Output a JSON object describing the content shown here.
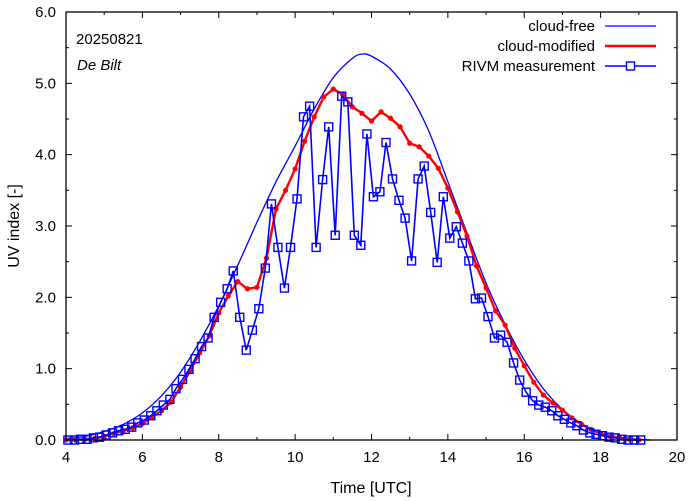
{
  "chart_data": {
    "type": "line",
    "annotation": {
      "date": "20250821",
      "location": "De Bilt"
    },
    "xlabel": "Time  [UTC]",
    "ylabel": "UV index  [-]",
    "xlim": [
      4,
      20
    ],
    "ylim": [
      0,
      6
    ],
    "x_ticks": [
      4,
      6,
      8,
      10,
      12,
      14,
      16,
      18,
      20
    ],
    "x_tick_labels": [
      "4",
      "6",
      "8",
      "10",
      "12",
      "14",
      "16",
      "18",
      "20"
    ],
    "x_minor_step": 1,
    "y_ticks": [
      0,
      1,
      2,
      3,
      4,
      5,
      6
    ],
    "y_tick_labels": [
      "0.0",
      "1.0",
      "2.0",
      "3.0",
      "4.0",
      "5.0",
      "6.0"
    ],
    "y_minor_step": 0.5,
    "grid": false,
    "legend_position": "top-right",
    "legend": [
      "cloud-free",
      "cloud-modified",
      "RIVM measurement"
    ],
    "colors": {
      "cloud_free": "#0000ff",
      "cloud_modified": "#ff0000",
      "measurement": "#0000ff",
      "axis": "#000000"
    },
    "series": [
      {
        "name": "cloud-free",
        "style": "line",
        "x": [
          4.0,
          4.5,
          5.0,
          5.5,
          6.0,
          6.5,
          7.0,
          7.5,
          8.0,
          8.5,
          9.0,
          9.5,
          10.0,
          10.5,
          11.0,
          11.5,
          11.75,
          12.0,
          12.5,
          13.0,
          13.5,
          14.0,
          14.5,
          15.0,
          15.5,
          16.0,
          16.5,
          17.0,
          17.5,
          18.0,
          18.5,
          19.0,
          19.3
        ],
        "y": [
          0.02,
          0.05,
          0.12,
          0.22,
          0.38,
          0.62,
          0.95,
          1.38,
          1.88,
          2.45,
          3.05,
          3.62,
          4.12,
          4.64,
          5.08,
          5.35,
          5.41,
          5.38,
          5.2,
          4.85,
          4.33,
          3.62,
          2.9,
          2.2,
          1.62,
          1.12,
          0.72,
          0.43,
          0.23,
          0.1,
          0.04,
          0.01,
          0.0
        ]
      },
      {
        "name": "cloud-modified",
        "style": "line-dots",
        "x": [
          4.0,
          4.25,
          4.5,
          4.75,
          5.0,
          5.25,
          5.5,
          5.75,
          6.0,
          6.25,
          6.5,
          6.75,
          7.0,
          7.25,
          7.5,
          7.75,
          8.0,
          8.25,
          8.5,
          8.75,
          9.0,
          9.25,
          9.5,
          9.75,
          10.0,
          10.25,
          10.5,
          10.75,
          11.0,
          11.25,
          11.5,
          11.75,
          12.0,
          12.25,
          12.5,
          12.75,
          13.0,
          13.25,
          13.5,
          13.75,
          14.0,
          14.25,
          14.5,
          14.75,
          15.0,
          15.25,
          15.5,
          15.75,
          16.0,
          16.25,
          16.5,
          16.75,
          17.0,
          17.25,
          17.5,
          17.75,
          18.0,
          18.25,
          18.5,
          18.75,
          19.0
        ],
        "y": [
          0.0,
          0.0,
          0.01,
          0.02,
          0.05,
          0.09,
          0.13,
          0.17,
          0.23,
          0.32,
          0.41,
          0.53,
          0.74,
          0.97,
          1.22,
          1.46,
          1.78,
          2.02,
          2.22,
          2.12,
          2.14,
          2.55,
          3.24,
          3.5,
          3.8,
          4.19,
          4.53,
          4.81,
          4.92,
          4.84,
          4.67,
          4.58,
          4.47,
          4.6,
          4.51,
          4.39,
          4.16,
          4.11,
          3.98,
          3.81,
          3.53,
          3.2,
          2.86,
          2.44,
          2.13,
          1.81,
          1.61,
          1.29,
          1.04,
          0.81,
          0.63,
          0.52,
          0.42,
          0.31,
          0.22,
          0.15,
          0.09,
          0.05,
          0.03,
          0.01,
          0.0
        ]
      },
      {
        "name": "RIVM measurement",
        "style": "line-squares",
        "x": [
          4.05,
          4.22,
          4.38,
          4.55,
          4.72,
          4.88,
          5.05,
          5.22,
          5.38,
          5.55,
          5.72,
          5.88,
          6.05,
          6.22,
          6.38,
          6.55,
          6.72,
          6.88,
          7.05,
          7.22,
          7.38,
          7.55,
          7.72,
          7.88,
          8.05,
          8.22,
          8.38,
          8.55,
          8.72,
          8.88,
          9.05,
          9.22,
          9.38,
          9.55,
          9.72,
          9.88,
          10.05,
          10.22,
          10.38,
          10.55,
          10.72,
          10.88,
          11.05,
          11.22,
          11.38,
          11.55,
          11.72,
          11.88,
          12.05,
          12.22,
          12.38,
          12.55,
          12.72,
          12.88,
          13.05,
          13.22,
          13.38,
          13.55,
          13.72,
          13.88,
          14.05,
          14.22,
          14.38,
          14.55,
          14.72,
          14.88,
          15.05,
          15.22,
          15.38,
          15.55,
          15.72,
          15.88,
          16.05,
          16.22,
          16.38,
          16.55,
          16.72,
          16.88,
          17.05,
          17.22,
          17.38,
          17.55,
          17.72,
          17.88,
          18.05,
          18.22,
          18.38,
          18.55,
          18.72,
          18.88,
          19.05
        ],
        "y": [
          0.0,
          0.0,
          0.01,
          0.01,
          0.03,
          0.04,
          0.07,
          0.1,
          0.13,
          0.15,
          0.18,
          0.24,
          0.28,
          0.34,
          0.41,
          0.49,
          0.57,
          0.72,
          0.85,
          0.99,
          1.14,
          1.31,
          1.43,
          1.72,
          1.93,
          2.12,
          2.37,
          1.72,
          1.26,
          1.54,
          1.84,
          2.41,
          3.31,
          2.7,
          2.13,
          2.7,
          3.38,
          4.53,
          4.68,
          2.7,
          3.65,
          4.39,
          2.87,
          4.82,
          4.74,
          2.87,
          2.73,
          4.29,
          3.41,
          3.48,
          4.17,
          3.66,
          3.36,
          3.11,
          2.51,
          3.66,
          3.84,
          3.19,
          2.49,
          3.41,
          2.83,
          2.99,
          2.76,
          2.51,
          1.98,
          1.99,
          1.73,
          1.43,
          1.47,
          1.37,
          1.08,
          0.84,
          0.67,
          0.55,
          0.49,
          0.46,
          0.41,
          0.34,
          0.29,
          0.24,
          0.2,
          0.14,
          0.1,
          0.08,
          0.06,
          0.04,
          0.03,
          0.01,
          0.0,
          0.0,
          0.0
        ]
      }
    ]
  }
}
